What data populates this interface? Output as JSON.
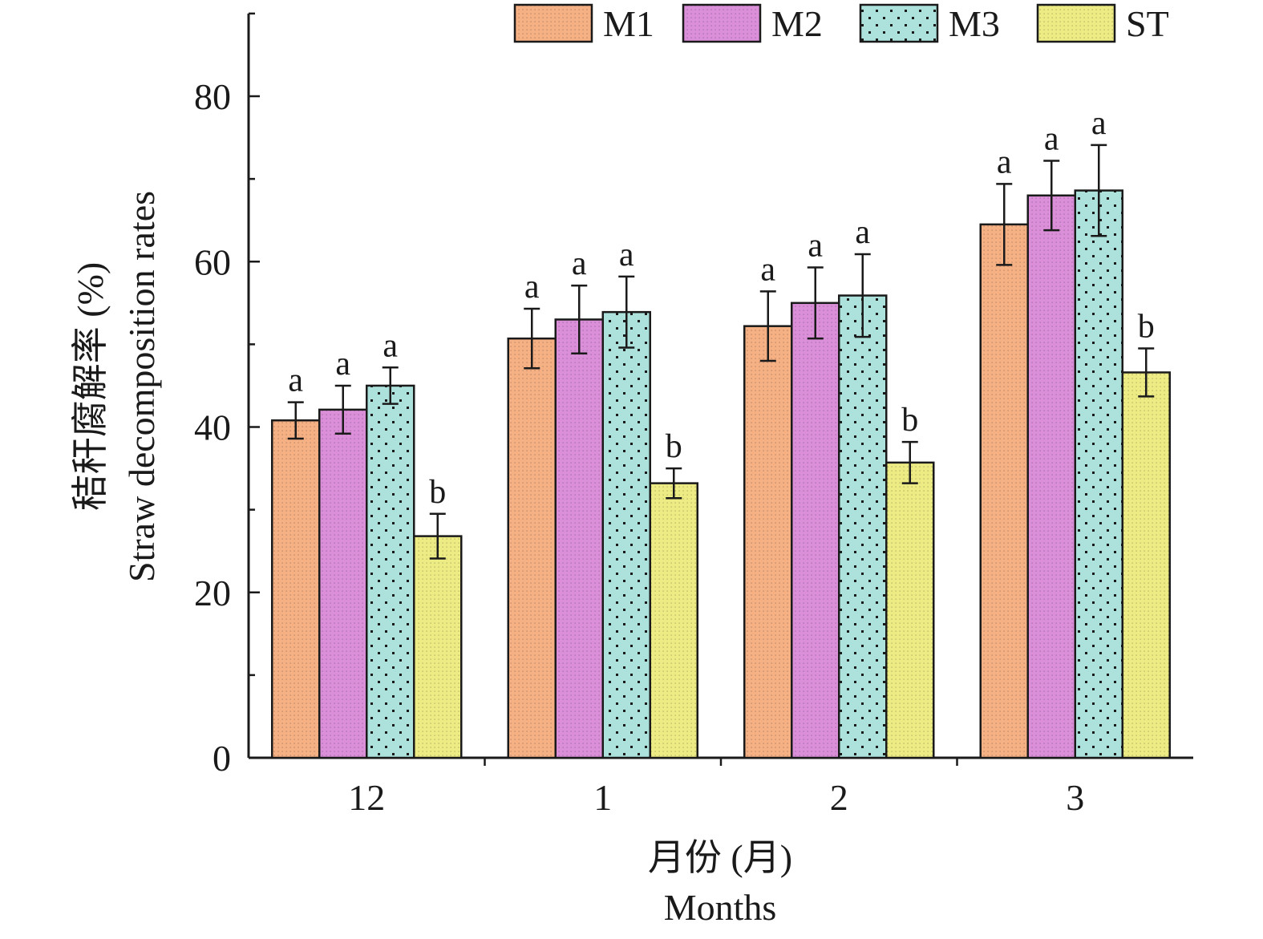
{
  "chart_data": {
    "type": "bar",
    "title": "",
    "xlabel_zh": "月份 (月)",
    "xlabel": "Months",
    "ylabel_zh": "秸秆腐解率 (%)",
    "ylabel": "Straw decomposition rates",
    "ylim": [
      0,
      90
    ],
    "yticks": [
      0,
      20,
      40,
      60,
      80
    ],
    "categories": [
      "12",
      "1",
      "2",
      "3"
    ],
    "legend_position": "top",
    "grid": false,
    "series": [
      {
        "name": "M1",
        "color": "#F5B084",
        "pattern": "fine-dots",
        "values": [
          40.8,
          50.7,
          52.2,
          64.5
        ],
        "errors": [
          2.2,
          3.6,
          4.2,
          4.9
        ],
        "sig": [
          "a",
          "a",
          "a",
          "a"
        ]
      },
      {
        "name": "M2",
        "color": "#DA8FD8",
        "pattern": "fine-dots",
        "values": [
          42.1,
          53.0,
          55.0,
          68.0
        ],
        "errors": [
          2.9,
          4.1,
          4.3,
          4.2
        ],
        "sig": [
          "a",
          "a",
          "a",
          "a"
        ]
      },
      {
        "name": "M3",
        "color": "#ADE2DC",
        "pattern": "sparse-dots",
        "values": [
          45.0,
          53.9,
          55.9,
          68.6
        ],
        "errors": [
          2.2,
          4.3,
          5.0,
          5.5
        ],
        "sig": [
          "a",
          "a",
          "a",
          "a"
        ]
      },
      {
        "name": "ST",
        "color": "#ECEB84",
        "pattern": "fine-dots",
        "values": [
          26.8,
          33.2,
          35.7,
          46.6
        ],
        "errors": [
          2.7,
          1.8,
          2.5,
          2.9
        ],
        "sig": [
          "b",
          "b",
          "b",
          "b"
        ]
      }
    ]
  }
}
